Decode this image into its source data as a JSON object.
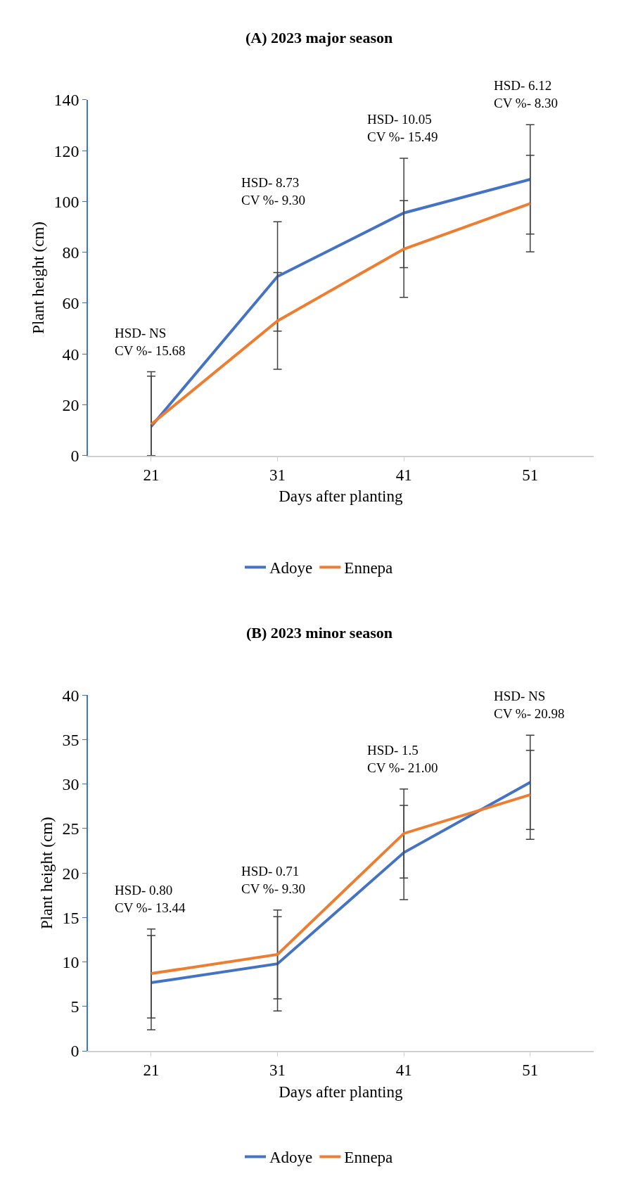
{
  "chart_data": [
    {
      "type": "line",
      "title": "(A) 2023 major season",
      "xlabel": "Days after planting",
      "ylabel": "Plant height (cm)",
      "categories": [
        "21",
        "31",
        "41",
        "51"
      ],
      "series": [
        {
          "name": "Adoye",
          "color": "#4472c4",
          "values": [
            11.5,
            70.5,
            95.5,
            108.7
          ],
          "errors": [
            [
              0,
              33.0
            ],
            21.5,
            21.5,
            21.5
          ]
        },
        {
          "name": "Ennepa",
          "color": "#ed7d31",
          "values": [
            12.3,
            53.0,
            81.3,
            99.2
          ],
          "errors": [
            [
              0,
              31.3
            ],
            19,
            19,
            19
          ]
        }
      ],
      "ylim": [
        0,
        140
      ],
      "yticks": [
        0,
        20,
        40,
        60,
        80,
        100,
        120,
        140
      ],
      "legend": "bottom",
      "annotations": [
        "HSD- NS\nCV %- 15.68",
        "HSD- 8.73\nCV %- 9.30",
        "HSD- 10.05\nCV %- 15.49",
        "HSD- 6.12\nCV %- 8.30"
      ]
    },
    {
      "type": "line",
      "title": "(B) 2023 minor season",
      "xlabel": "Days after planting",
      "ylabel": "Plant height (cm)",
      "categories": [
        "21",
        "31",
        "41",
        "51"
      ],
      "series": [
        {
          "name": "Adoye",
          "color": "#4472c4",
          "values": [
            7.67,
            9.8,
            22.3,
            30.2
          ],
          "errors": [
            5.3,
            5.3,
            5.3,
            5.3
          ]
        },
        {
          "name": "Ennepa",
          "color": "#ed7d31",
          "values": [
            8.7,
            10.85,
            24.45,
            28.8
          ],
          "errors": [
            5,
            5,
            5,
            5
          ]
        }
      ],
      "ylim": [
        0,
        40
      ],
      "yticks": [
        0,
        5,
        10,
        15,
        20,
        25,
        30,
        35,
        40
      ],
      "legend": "bottom",
      "annotations": [
        "HSD- 0.80\nCV %- 13.44",
        "HSD- 0.71\nCV %- 9.30",
        "HSD- 1.5\nCV %- 21.00",
        "HSD- NS\nCV %- 20.98"
      ]
    }
  ]
}
